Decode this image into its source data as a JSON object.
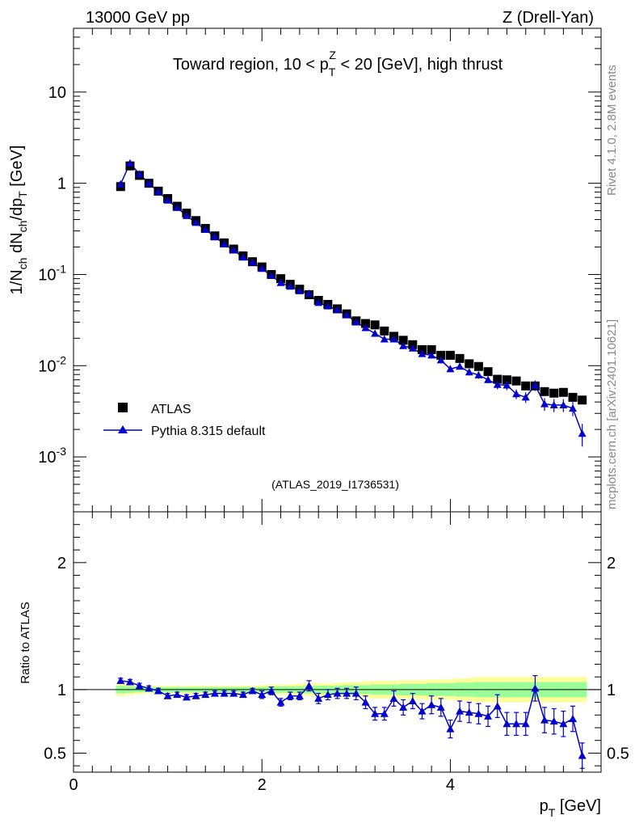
{
  "header": {
    "left": "13000 GeV pp",
    "right": "Z (Drell-Yan)"
  },
  "side_labels": {
    "rivet": "Rivet 4.1.0,  2.8M events",
    "mcplots": "mcplots.cern.ch [arXiv:2401.10621]"
  },
  "colors": {
    "data": "#000000",
    "mc": "#0000cc",
    "band_inner": "#99ff99",
    "band_outer": "#ffff99",
    "watermark": "#999999"
  },
  "chart_data": [
    {
      "type": "scatter",
      "title": "Toward region, 10 < pTZ < 20 [GeV], high thrust",
      "title_parts": {
        "pre": "Toward region, 10 < p",
        "sub": "T",
        "sup": "Z",
        "post": " < 20 [GeV], high thrust"
      },
      "ylabel": "1/Nch dNch/dpT [GeV]",
      "xlabel": "pT [GeV]",
      "watermark": "(ATLAS_2019_I1736531)",
      "yscale": "log",
      "xlim": [
        0,
        5.6
      ],
      "ylim": [
        0.00025,
        50
      ],
      "y_ticks": [
        {
          "value": 10,
          "label": "10"
        },
        {
          "value": 1,
          "label": "1"
        },
        {
          "value": 0.1,
          "label": "10^-1"
        },
        {
          "value": 0.01,
          "label": "10^-2"
        },
        {
          "value": 0.001,
          "label": "10^-3"
        }
      ],
      "legend": {
        "position": "bottom-left",
        "entries": [
          "ATLAS",
          "Pythia 8.315 default"
        ]
      },
      "x": [
        0.5,
        0.6,
        0.7,
        0.8,
        0.9,
        1.0,
        1.1,
        1.2,
        1.3,
        1.4,
        1.5,
        1.6,
        1.7,
        1.8,
        1.9,
        2.0,
        2.1,
        2.2,
        2.3,
        2.4,
        2.5,
        2.6,
        2.7,
        2.8,
        2.9,
        3.0,
        3.1,
        3.2,
        3.3,
        3.4,
        3.5,
        3.6,
        3.7,
        3.8,
        3.9,
        4.0,
        4.1,
        4.2,
        4.3,
        4.4,
        4.5,
        4.6,
        4.7,
        4.8,
        4.9,
        5.0,
        5.1,
        5.2,
        5.3,
        5.4
      ],
      "series": [
        {
          "name": "ATLAS",
          "marker": "square",
          "values": [
            0.92,
            1.55,
            1.22,
            1.0,
            0.82,
            0.68,
            0.56,
            0.47,
            0.39,
            0.32,
            0.265,
            0.222,
            0.19,
            0.16,
            0.138,
            0.121,
            0.1,
            0.09,
            0.078,
            0.069,
            0.06,
            0.052,
            0.047,
            0.042,
            0.037,
            0.031,
            0.029,
            0.028,
            0.024,
            0.021,
            0.019,
            0.017,
            0.015,
            0.015,
            0.013,
            0.013,
            0.012,
            0.0105,
            0.0098,
            0.0086,
            0.0071,
            0.007,
            0.0068,
            0.006,
            0.006,
            0.0052,
            0.005,
            0.0051,
            0.0045,
            0.0042
          ]
        },
        {
          "name": "Pythia 8.315 default",
          "marker": "triangle",
          "values": [
            0.98,
            1.66,
            1.26,
            1.0,
            0.81,
            0.65,
            0.54,
            0.44,
            0.37,
            0.31,
            0.26,
            0.215,
            0.185,
            0.154,
            0.136,
            0.116,
            0.097,
            0.081,
            0.074,
            0.066,
            0.062,
            0.049,
            0.045,
            0.041,
            0.036,
            0.03,
            0.026,
            0.0225,
            0.0195,
            0.0195,
            0.0165,
            0.0155,
            0.0135,
            0.013,
            0.0115,
            0.0092,
            0.0098,
            0.0085,
            0.0079,
            0.007,
            0.0062,
            0.0061,
            0.0049,
            0.0045,
            0.0061,
            0.0038,
            0.0037,
            0.0037,
            0.0034,
            0.0018
          ],
          "errors": [
            0.02,
            0.03,
            0.02,
            0.015,
            0.012,
            0.01,
            0.008,
            0.006,
            0.005,
            0.004,
            0.003,
            0.003,
            0.0025,
            0.002,
            0.002,
            0.002,
            0.002,
            0.0018,
            0.0015,
            0.0013,
            0.0015,
            0.0012,
            0.001,
            0.001,
            0.0009,
            0.0008,
            0.0008,
            0.0008,
            0.0007,
            0.0008,
            0.0007,
            0.0007,
            0.0006,
            0.0007,
            0.0006,
            0.0006,
            0.0007,
            0.0007,
            0.0007,
            0.0006,
            0.0007,
            0.0007,
            0.0006,
            0.0006,
            0.0008,
            0.0006,
            0.0006,
            0.0006,
            0.0006,
            0.0005
          ]
        }
      ]
    },
    {
      "type": "scatter",
      "ylabel": "Ratio to ATLAS",
      "xlabel": "pT [GeV]",
      "xlim": [
        0,
        5.6
      ],
      "ylim": [
        0.35,
        2.4
      ],
      "y_ticks": [
        {
          "value": 2,
          "label": "2"
        },
        {
          "value": 1,
          "label": "1"
        },
        {
          "value": 0.5,
          "label": "0.5"
        }
      ],
      "x_ticks": [
        {
          "value": 0,
          "label": "0"
        },
        {
          "value": 2,
          "label": "2"
        },
        {
          "value": 4,
          "label": "4"
        }
      ],
      "reference_line": 1,
      "x": [
        0.5,
        0.6,
        0.7,
        0.8,
        0.9,
        1.0,
        1.1,
        1.2,
        1.3,
        1.4,
        1.5,
        1.6,
        1.7,
        1.8,
        1.9,
        2.0,
        2.1,
        2.2,
        2.3,
        2.4,
        2.5,
        2.6,
        2.7,
        2.8,
        2.9,
        3.0,
        3.1,
        3.2,
        3.3,
        3.4,
        3.5,
        3.6,
        3.7,
        3.8,
        3.9,
        4.0,
        4.1,
        4.2,
        4.3,
        4.4,
        4.5,
        4.6,
        4.7,
        4.8,
        4.9,
        5.0,
        5.1,
        5.2,
        5.3,
        5.4
      ],
      "bands": {
        "inner_half_width": [
          0.03,
          0.025,
          0.02,
          0.02,
          0.02,
          0.02,
          0.02,
          0.02,
          0.02,
          0.02,
          0.02,
          0.02,
          0.02,
          0.02,
          0.02,
          0.02,
          0.025,
          0.025,
          0.025,
          0.025,
          0.03,
          0.03,
          0.03,
          0.03,
          0.035,
          0.035,
          0.035,
          0.04,
          0.04,
          0.04,
          0.045,
          0.045,
          0.045,
          0.05,
          0.05,
          0.05,
          0.055,
          0.055,
          0.06,
          0.06,
          0.06,
          0.06,
          0.06,
          0.06,
          0.06,
          0.06,
          0.06,
          0.06,
          0.06,
          0.06
        ],
        "outer_half_width": [
          0.05,
          0.04,
          0.035,
          0.03,
          0.03,
          0.03,
          0.03,
          0.03,
          0.03,
          0.03,
          0.03,
          0.03,
          0.03,
          0.03,
          0.03,
          0.035,
          0.04,
          0.04,
          0.04,
          0.045,
          0.05,
          0.05,
          0.05,
          0.055,
          0.06,
          0.06,
          0.065,
          0.07,
          0.07,
          0.07,
          0.075,
          0.075,
          0.075,
          0.08,
          0.08,
          0.08,
          0.09,
          0.09,
          0.1,
          0.1,
          0.1,
          0.1,
          0.1,
          0.1,
          0.1,
          0.1,
          0.1,
          0.1,
          0.1,
          0.1
        ]
      },
      "series": [
        {
          "name": "Pythia 8.315 default",
          "values": [
            1.07,
            1.06,
            1.03,
            1.01,
            0.99,
            0.95,
            0.96,
            0.94,
            0.95,
            0.96,
            0.97,
            0.97,
            0.97,
            0.96,
            0.99,
            0.96,
            0.99,
            0.9,
            0.95,
            0.95,
            1.03,
            0.93,
            0.96,
            0.97,
            0.97,
            0.97,
            0.9,
            0.81,
            0.81,
            0.93,
            0.86,
            0.91,
            0.83,
            0.88,
            0.86,
            0.69,
            0.83,
            0.82,
            0.81,
            0.79,
            0.87,
            0.73,
            0.73,
            0.73,
            1.01,
            0.76,
            0.75,
            0.73,
            0.77,
            0.48
          ],
          "errors": [
            0.02,
            0.02,
            0.02,
            0.02,
            0.02,
            0.02,
            0.02,
            0.02,
            0.02,
            0.02,
            0.02,
            0.02,
            0.02,
            0.02,
            0.02,
            0.03,
            0.03,
            0.03,
            0.03,
            0.03,
            0.04,
            0.04,
            0.04,
            0.04,
            0.04,
            0.05,
            0.05,
            0.05,
            0.05,
            0.06,
            0.06,
            0.06,
            0.06,
            0.07,
            0.07,
            0.07,
            0.08,
            0.08,
            0.08,
            0.08,
            0.09,
            0.09,
            0.09,
            0.09,
            0.1,
            0.1,
            0.1,
            0.1,
            0.1,
            0.1
          ]
        }
      ]
    }
  ]
}
